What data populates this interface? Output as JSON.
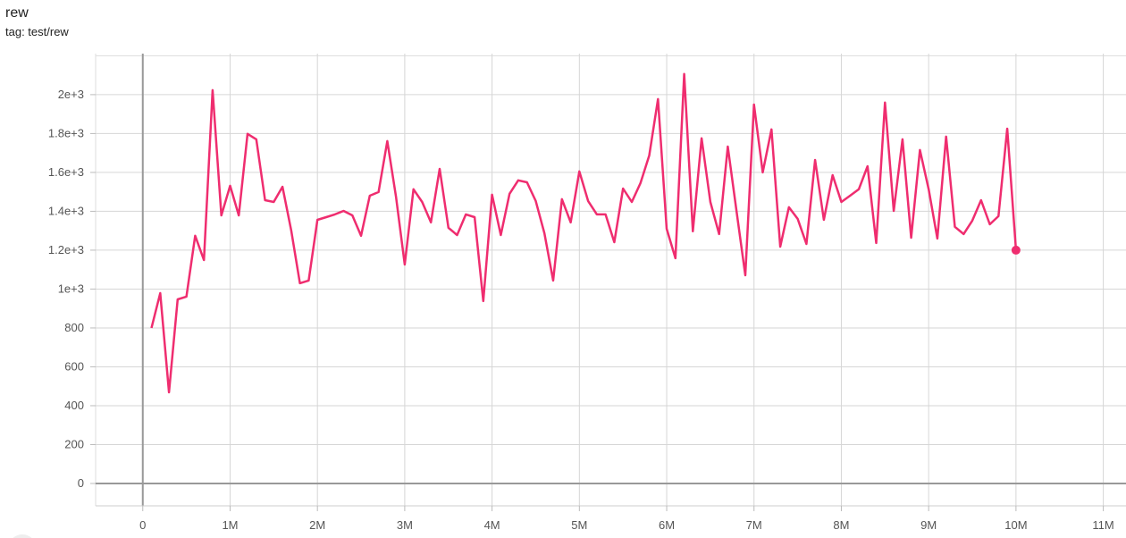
{
  "header": {
    "title": "rew",
    "tag": "tag: test/rew"
  },
  "chart_data": {
    "type": "line",
    "title": "rew",
    "xlabel": "",
    "ylabel": "",
    "xlim": [
      -540000,
      11260000
    ],
    "ylim": [
      -115,
      2211
    ],
    "grid": true,
    "line_color": "#ef2d6f",
    "x_ticks": [
      0,
      1000000,
      2000000,
      3000000,
      4000000,
      5000000,
      6000000,
      7000000,
      8000000,
      9000000,
      10000000,
      11000000
    ],
    "x_tick_labels": [
      "0",
      "1M",
      "2M",
      "3M",
      "4M",
      "5M",
      "6M",
      "7M",
      "8M",
      "9M",
      "10M",
      "11M"
    ],
    "y_ticks": [
      0,
      200,
      400,
      600,
      800,
      1000,
      1200,
      1400,
      1600,
      1800,
      2000
    ],
    "y_tick_labels": [
      "0",
      "200",
      "400",
      "600",
      "800",
      "1e+3",
      "1.2e+3",
      "1.4e+3",
      "1.6e+3",
      "1.8e+3",
      "2e+3"
    ],
    "series": [
      {
        "x_step": 100000,
        "x_start": 100000,
        "values": [
          800,
          979,
          469,
          947,
          961,
          1274,
          1149,
          2023,
          1379,
          1531,
          1379,
          1798,
          1770,
          1457,
          1448,
          1526,
          1301,
          1030,
          1044,
          1356,
          1370,
          1384,
          1402,
          1379,
          1274,
          1480,
          1499,
          1761,
          1476,
          1126,
          1513,
          1448,
          1343,
          1618,
          1315,
          1278,
          1384,
          1370,
          938,
          1485,
          1278,
          1490,
          1559,
          1549,
          1453,
          1287,
          1044,
          1462,
          1343,
          1605,
          1453,
          1384,
          1384,
          1241,
          1517,
          1448,
          1545,
          1687,
          1977,
          1310,
          1159,
          2106,
          1297,
          1775,
          1448,
          1283,
          1733,
          1400,
          1071,
          1949,
          1600,
          1821,
          1218,
          1421,
          1361,
          1232,
          1664,
          1356,
          1586,
          1448,
          1480,
          1513,
          1632,
          1237,
          1959,
          1402,
          1770,
          1264,
          1715,
          1513,
          1260,
          1784,
          1320,
          1283,
          1352,
          1457,
          1333,
          1375,
          1825,
          1200
        ]
      }
    ]
  }
}
